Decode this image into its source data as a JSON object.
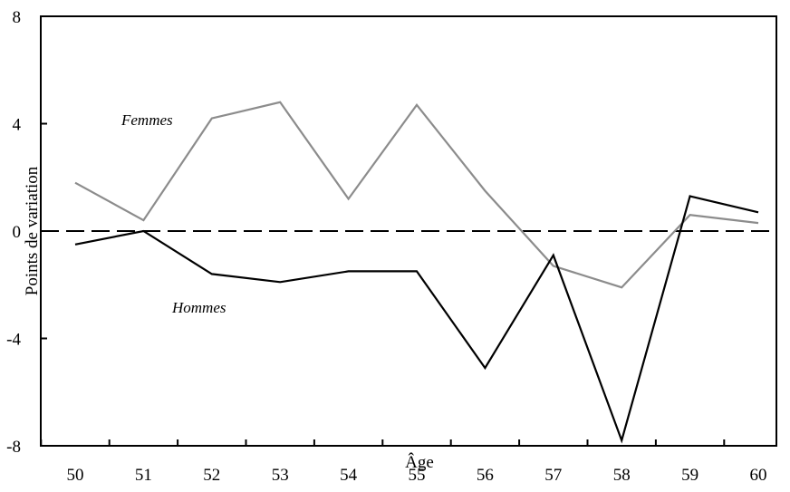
{
  "chart_data": {
    "type": "line",
    "title": "",
    "xlabel": "Âge",
    "ylabel": "Points de variation",
    "x": [
      50,
      51,
      52,
      53,
      54,
      55,
      56,
      57,
      58,
      59,
      60
    ],
    "x_tick_labels": [
      "50",
      "51",
      "52",
      "53",
      "54",
      "55",
      "56",
      "57",
      "58",
      "59",
      "60"
    ],
    "ylim": [
      -8,
      8
    ],
    "y_ticks": [
      -8,
      -4,
      0,
      4,
      8
    ],
    "y_tick_labels": [
      "-8",
      "-4",
      "0",
      "4",
      "8"
    ],
    "reference_line": {
      "y": 0,
      "style": "dashed"
    },
    "grid": false,
    "series": [
      {
        "name": "Femmes",
        "color": "#8c8c8c",
        "values": [
          1.8,
          0.4,
          4.2,
          4.8,
          1.2,
          4.7,
          1.5,
          -1.3,
          -2.1,
          0.6,
          0.3
        ]
      },
      {
        "name": "Hommes",
        "color": "#000000",
        "values": [
          -0.5,
          0.0,
          -1.6,
          -1.9,
          -1.5,
          -1.5,
          -5.1,
          -0.9,
          -7.8,
          1.3,
          0.7
        ]
      }
    ]
  }
}
